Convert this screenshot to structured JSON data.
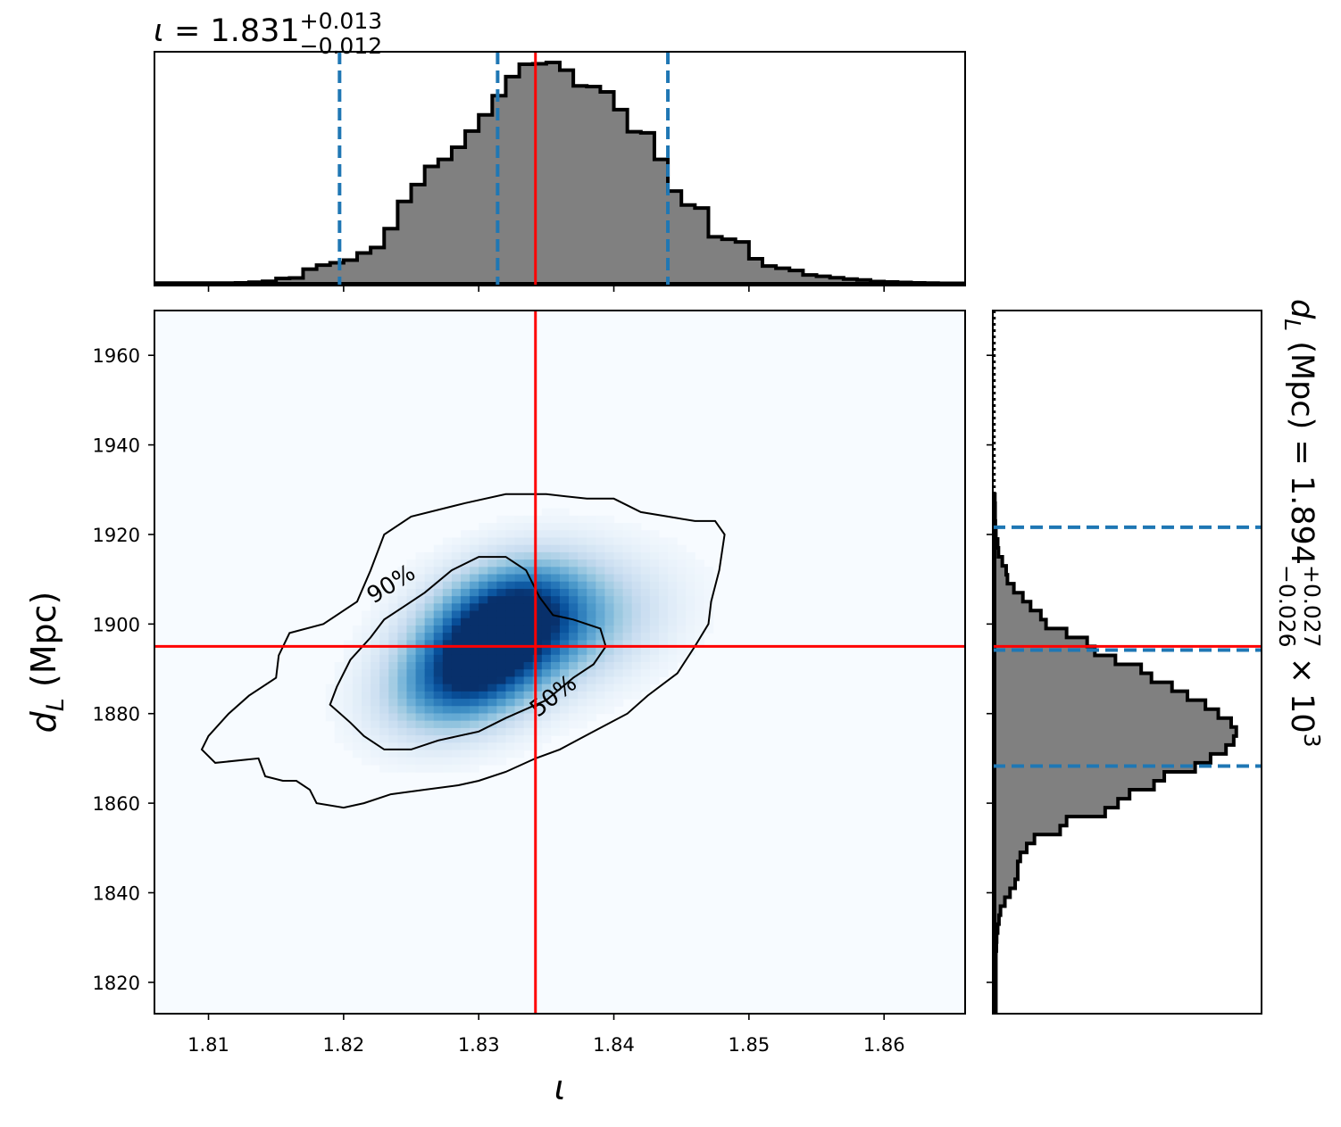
{
  "chart_data": [
    {
      "type": "histogram",
      "panel": "top-marginal",
      "title": {
        "symbol": "ι",
        "equals": " = ",
        "value": "1.831",
        "plus": "+0.013",
        "minus": "−0.012"
      },
      "xlim": [
        1.806,
        1.866
      ],
      "quantiles": [
        1.8197,
        1.8314,
        1.844
      ],
      "truth": 1.8342,
      "bin_edges_start": 1.806,
      "bin_width": 0.001,
      "heights": [
        0.003,
        0.003,
        0.003,
        0.003,
        0.003,
        0.003,
        0.004,
        0.007,
        0.011,
        0.024,
        0.026,
        0.066,
        0.084,
        0.095,
        0.107,
        0.139,
        0.164,
        0.249,
        0.372,
        0.448,
        0.53,
        0.562,
        0.617,
        0.69,
        0.763,
        0.85,
        0.936,
        0.992,
        0.994,
        1.0,
        0.965,
        0.894,
        0.891,
        0.867,
        0.787,
        0.687,
        0.682,
        0.562,
        0.419,
        0.356,
        0.342,
        0.212,
        0.201,
        0.189,
        0.113,
        0.08,
        0.07,
        0.06,
        0.04,
        0.034,
        0.027,
        0.021,
        0.017,
        0.01,
        0.008,
        0.006,
        0.004,
        0.003,
        0.002,
        0.002
      ]
    },
    {
      "type": "heatmap",
      "panel": "joint",
      "xlabel": "ι",
      "ylabel": {
        "symbol": "d",
        "sub": "L",
        "rest": " (Mpc)"
      },
      "xlim": [
        1.806,
        1.866
      ],
      "ylim": [
        1813,
        1970
      ],
      "xticks": [
        {
          "v": 1.81,
          "label": "1.81"
        },
        {
          "v": 1.82,
          "label": "1.82"
        },
        {
          "v": 1.83,
          "label": "1.83"
        },
        {
          "v": 1.84,
          "label": "1.84"
        },
        {
          "v": 1.85,
          "label": "1.85"
        },
        {
          "v": 1.86,
          "label": "1.86"
        }
      ],
      "yticks": [
        {
          "v": 1820,
          "label": "1820"
        },
        {
          "v": 1840,
          "label": "1840"
        },
        {
          "v": 1860,
          "label": "1860"
        },
        {
          "v": 1880,
          "label": "1880"
        },
        {
          "v": 1900,
          "label": "1900"
        },
        {
          "v": 1920,
          "label": "1920"
        },
        {
          "v": 1940,
          "label": "1940"
        },
        {
          "v": 1960,
          "label": "1960"
        }
      ],
      "truth": {
        "x": 1.8342,
        "y": 1895
      },
      "colormap": "Blues",
      "density_peaks": [
        {
          "x": 1.832,
          "y": 1902,
          "sx": 0.0035,
          "sy": 7.5,
          "w": 1.0
        },
        {
          "x": 1.8295,
          "y": 1889,
          "sx": 0.0035,
          "sy": 7.5,
          "w": 0.95
        },
        {
          "x": 1.837,
          "y": 1899,
          "sx": 0.004,
          "sy": 8.0,
          "w": 0.35
        }
      ],
      "contours": [
        {
          "label": "90%",
          "points": [
            [
              1.8137,
              1870
            ],
            [
              1.8142,
              1866
            ],
            [
              1.8155,
              1865
            ],
            [
              1.8165,
              1865
            ],
            [
              1.8175,
              1863
            ],
            [
              1.818,
              1860
            ],
            [
              1.82,
              1859
            ],
            [
              1.8215,
              1860
            ],
            [
              1.8235,
              1862
            ],
            [
              1.826,
              1863
            ],
            [
              1.8285,
              1864
            ],
            [
              1.83,
              1865
            ],
            [
              1.832,
              1867
            ],
            [
              1.8342,
              1870
            ],
            [
              1.836,
              1872
            ],
            [
              1.8385,
              1876
            ],
            [
              1.841,
              1880
            ],
            [
              1.8425,
              1884
            ],
            [
              1.8447,
              1889
            ],
            [
              1.846,
              1895
            ],
            [
              1.847,
              1900
            ],
            [
              1.8472,
              1905
            ],
            [
              1.8478,
              1912
            ],
            [
              1.8482,
              1920
            ],
            [
              1.8475,
              1923
            ],
            [
              1.846,
              1923
            ],
            [
              1.844,
              1924
            ],
            [
              1.842,
              1925
            ],
            [
              1.84,
              1928
            ],
            [
              1.838,
              1928
            ],
            [
              1.835,
              1929
            ],
            [
              1.832,
              1929
            ],
            [
              1.829,
              1927
            ],
            [
              1.825,
              1924
            ],
            [
              1.823,
              1920
            ],
            [
              1.822,
              1912
            ],
            [
              1.821,
              1905
            ],
            [
              1.8185,
              1900
            ],
            [
              1.816,
              1898
            ],
            [
              1.8152,
              1893
            ],
            [
              1.815,
              1888
            ],
            [
              1.813,
              1884
            ],
            [
              1.8115,
              1880
            ],
            [
              1.81,
              1875
            ],
            [
              1.8095,
              1872
            ],
            [
              1.8105,
              1869
            ],
            [
              1.8137,
              1870
            ]
          ]
        },
        {
          "label": "50%",
          "points": [
            [
              1.8205,
              1878
            ],
            [
              1.8215,
              1875
            ],
            [
              1.823,
              1872
            ],
            [
              1.825,
              1872
            ],
            [
              1.827,
              1874
            ],
            [
              1.83,
              1876
            ],
            [
              1.832,
              1879
            ],
            [
              1.835,
              1883
            ],
            [
              1.837,
              1888
            ],
            [
              1.8385,
              1891
            ],
            [
              1.8394,
              1895
            ],
            [
              1.839,
              1899
            ],
            [
              1.837,
              1901
            ],
            [
              1.8355,
              1902
            ],
            [
              1.8345,
              1906
            ],
            [
              1.8335,
              1912
            ],
            [
              1.832,
              1915
            ],
            [
              1.83,
              1915
            ],
            [
              1.828,
              1912
            ],
            [
              1.826,
              1907
            ],
            [
              1.8245,
              1904
            ],
            [
              1.823,
              1901
            ],
            [
              1.822,
              1897
            ],
            [
              1.8205,
              1892
            ],
            [
              1.8195,
              1886
            ],
            [
              1.819,
              1882
            ],
            [
              1.8205,
              1878
            ]
          ]
        }
      ]
    },
    {
      "type": "histogram",
      "panel": "right-marginal",
      "orientation": "horizontal",
      "title": {
        "symbol": "d",
        "sub": "L",
        "rest": " (Mpc) = 1.894",
        "plus": "+0.027",
        "minus": "−0.026",
        "suffix": " × 10",
        "exp": "3"
      },
      "ylim": [
        1813,
        1970
      ],
      "quantiles": [
        1868.3,
        1894.2,
        1921.6
      ],
      "truth": 1895,
      "bin_edges_start": 1813,
      "bin_width": 2,
      "widths": [
        0.005,
        0.005,
        0.005,
        0.005,
        0.005,
        0.005,
        0.005,
        0.007,
        0.008,
        0.012,
        0.017,
        0.023,
        0.04,
        0.06,
        0.08,
        0.09,
        0.09,
        0.1,
        0.125,
        0.155,
        0.255,
        0.28,
        0.43,
        0.48,
        0.525,
        0.62,
        0.66,
        0.78,
        0.84,
        0.9,
        0.93,
        0.94,
        0.92,
        0.87,
        0.82,
        0.75,
        0.69,
        0.61,
        0.57,
        0.47,
        0.39,
        0.36,
        0.28,
        0.2,
        0.18,
        0.14,
        0.11,
        0.075,
        0.05,
        0.045,
        0.03,
        0.015,
        0.012,
        0.005,
        0.003,
        0.002,
        0.002,
        0.001
      ]
    }
  ]
}
